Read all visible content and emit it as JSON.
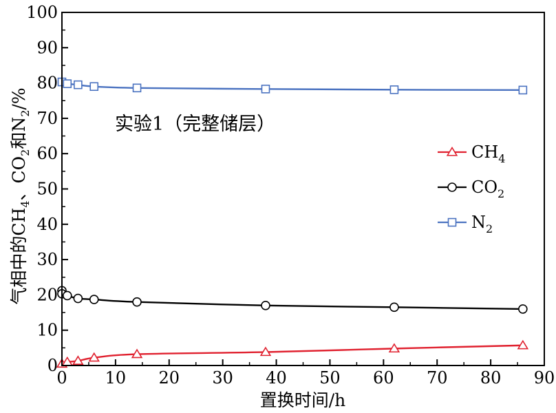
{
  "chart_data": {
    "type": "line",
    "title": "",
    "xlabel": "置换时间/h",
    "ylabel_parts": {
      "a": "气相中的CH",
      "a_sub": "4",
      "b": "、CO",
      "b_sub": "2",
      "c": "和N",
      "c_sub": "2",
      "d": "/%"
    },
    "xlim": [
      0,
      90
    ],
    "ylim": [
      0,
      100
    ],
    "xticks": [
      "0",
      "10",
      "20",
      "30",
      "40",
      "50",
      "60",
      "70",
      "80",
      "90"
    ],
    "yticks": [
      "0",
      "10",
      "20",
      "30",
      "40",
      "50",
      "60",
      "70",
      "80",
      "90",
      "100"
    ],
    "annotation": "实验1（完整储层）",
    "legend_position": "right-middle",
    "series": [
      {
        "key": "ch4",
        "name_main": "CH",
        "name_sub": "4",
        "color": "#e0202e",
        "marker": "triangle",
        "points": [
          [
            0,
            0.5
          ],
          [
            1,
            1.0
          ],
          [
            3,
            1.3
          ],
          [
            6,
            2.2
          ],
          [
            14,
            3.2
          ],
          [
            38,
            3.8
          ],
          [
            62,
            4.8
          ],
          [
            86,
            5.7
          ]
        ]
      },
      {
        "key": "co2",
        "name_main": "CO",
        "name_sub": "2",
        "color": "#000000",
        "marker": "circle",
        "points": [
          [
            0,
            21.2
          ],
          [
            0,
            20.3
          ],
          [
            1,
            19.8
          ],
          [
            3,
            19.0
          ],
          [
            6,
            18.7
          ],
          [
            14,
            18.0
          ],
          [
            38,
            17.0
          ],
          [
            62,
            16.5
          ],
          [
            86,
            16.0
          ]
        ]
      },
      {
        "key": "n2",
        "name_main": "N",
        "name_sub": "2",
        "color": "#4a72c0",
        "marker": "square",
        "points": [
          [
            0,
            80.3
          ],
          [
            1,
            79.8
          ],
          [
            3,
            79.5
          ],
          [
            6,
            79.0
          ],
          [
            14,
            78.6
          ],
          [
            38,
            78.3
          ],
          [
            62,
            78.1
          ],
          [
            86,
            78.0
          ]
        ]
      }
    ]
  }
}
